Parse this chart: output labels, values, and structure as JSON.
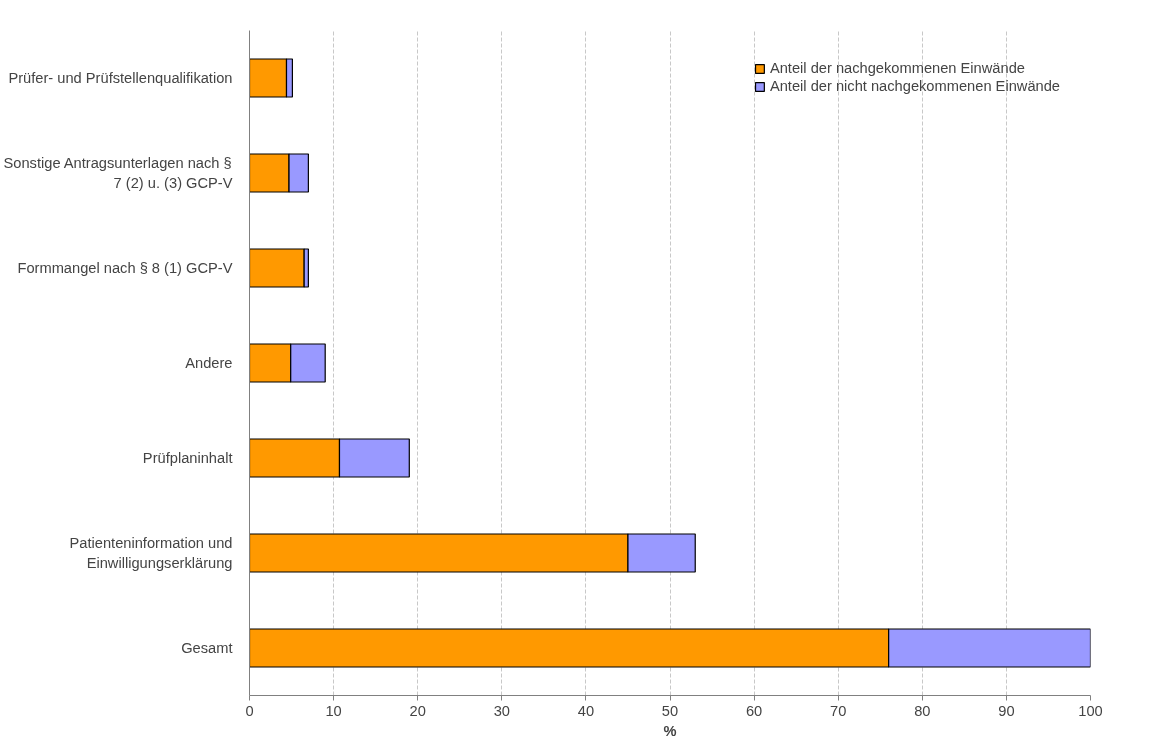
{
  "chart_data": {
    "type": "bar",
    "orientation": "horizontal",
    "stacked": true,
    "xlabel": "%",
    "categories": [
      "Prüfer- und Prüfstellenqualifikation",
      "Sonstige Antragsunterlagen nach §\n7 (2) u. (3) GCP-V",
      "Formmangel nach § 8 (1) GCP-V",
      "Andere",
      "Prüfplaninhalt",
      "Patienteninformation und\nEinwilligungserklärung",
      "Gesamt"
    ],
    "series": [
      {
        "name": "Anteil der nachgekommenen Einwände",
        "color": "#ff9900",
        "values": [
          4.4,
          4.7,
          6.5,
          4.9,
          10.7,
          45,
          76
        ]
      },
      {
        "name": "Anteil der nicht nachgekommenen Einwände",
        "color": "#9999ff",
        "values": [
          0.7,
          2.3,
          0.5,
          4.1,
          8.3,
          8,
          24
        ]
      }
    ],
    "xlim": [
      0,
      100
    ],
    "xticks": [
      0,
      10,
      20,
      30,
      40,
      50,
      60,
      70,
      80,
      90,
      100
    ],
    "grid": "x",
    "legend": "top right"
  }
}
